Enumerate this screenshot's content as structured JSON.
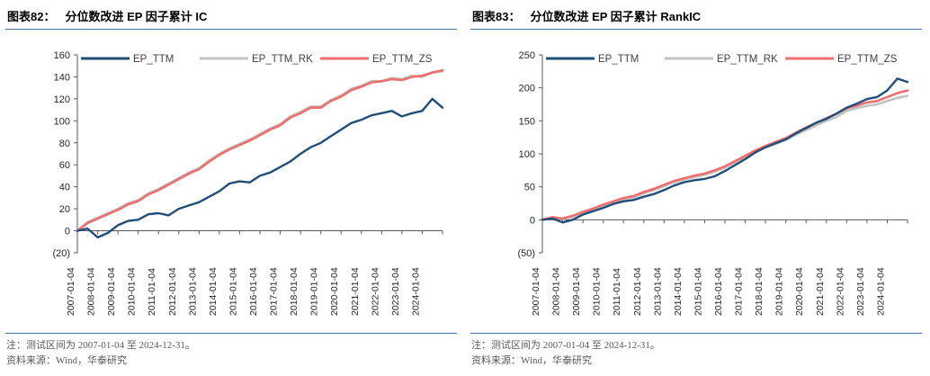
{
  "style": {
    "rule_color": "#41719c",
    "axis_color": "#595959",
    "tick_label_color": "#262626",
    "legend_text_color": "#404040",
    "note_text_color": "#595959"
  },
  "chart_data": [
    {
      "type": "line",
      "fig_label": "图表82：",
      "title": "分位数改进 EP 因子累计 IC",
      "legend_position": "top",
      "grid": false,
      "ylim": [
        -20,
        160
      ],
      "y_ticks": [
        160,
        140,
        120,
        100,
        80,
        60,
        40,
        20,
        0,
        -20
      ],
      "y_tick_labels": [
        "160",
        "140",
        "120",
        "100",
        "80",
        "60",
        "40",
        "20",
        "0",
        "(20)"
      ],
      "x_tick_labels": [
        "2007-01-04",
        "2008-01-04",
        "2009-01-04",
        "2010-01-04",
        "2011-01-04",
        "2012-01-04",
        "2013-01-04",
        "2014-01-04",
        "2015-01-04",
        "2016-01-04",
        "2017-01-04",
        "2018-01-04",
        "2019-01-04",
        "2020-01-04",
        "2021-01-04",
        "2022-01-04",
        "2023-01-04",
        "2024-01-04"
      ],
      "x": [
        2007,
        2007.5,
        2008,
        2008.5,
        2009,
        2009.5,
        2010,
        2010.5,
        2011,
        2011.5,
        2012,
        2012.5,
        2013,
        2013.5,
        2014,
        2014.5,
        2015,
        2015.5,
        2016,
        2016.5,
        2017,
        2017.5,
        2018,
        2018.5,
        2019,
        2019.5,
        2020,
        2020.5,
        2021,
        2021.5,
        2022,
        2022.5,
        2023,
        2023.5,
        2024,
        2024.5,
        2025
      ],
      "series": [
        {
          "name": "EP_TTM",
          "color": "#1f4e79",
          "width": 2.4,
          "values": [
            0,
            2,
            -6,
            -2,
            5,
            9,
            10,
            15,
            16,
            14,
            20,
            23,
            26,
            31,
            36,
            43,
            45,
            44,
            50,
            53,
            58,
            63,
            70,
            76,
            80,
            86,
            92,
            98,
            101,
            105,
            107,
            109,
            104,
            107,
            109,
            120,
            112
          ]
        },
        {
          "name": "EP_TTM_RK",
          "color": "#c2c2c2",
          "width": 2.6,
          "values": [
            0,
            8,
            12,
            16,
            20,
            25,
            28,
            34,
            38,
            43,
            48,
            53,
            57,
            64,
            70,
            75,
            79,
            83,
            88,
            93,
            97,
            104,
            108,
            113,
            113,
            119,
            123,
            129,
            132,
            136,
            136,
            139,
            138,
            141,
            140,
            144,
            145
          ]
        },
        {
          "name": "EP_TTM_ZS",
          "color": "#ee6e6e",
          "width": 2.6,
          "values": [
            0,
            7,
            11,
            15,
            19,
            24,
            27,
            33,
            37,
            42,
            47,
            52,
            56,
            63,
            69,
            74,
            78,
            82,
            87,
            92,
            96,
            103,
            107,
            112,
            112,
            118,
            122,
            128,
            131,
            135,
            136,
            138,
            137,
            140,
            141,
            144,
            146
          ]
        }
      ],
      "draw_order": [
        1,
        2,
        0
      ],
      "notes": [
        "注：测试区间为 2007-01-04 至 2024-12-31。",
        "资料来源：Wind，华泰研究"
      ]
    },
    {
      "type": "line",
      "fig_label": "图表83：",
      "title": "分位数改进 EP 因子累计 RankIC",
      "legend_position": "top",
      "grid": false,
      "ylim": [
        -50,
        250
      ],
      "y_ticks": [
        250,
        200,
        150,
        100,
        50,
        0,
        -50
      ],
      "y_tick_labels": [
        "250",
        "200",
        "150",
        "100",
        "50",
        "0",
        "(50)"
      ],
      "x_tick_labels": [
        "2007-01-04",
        "2008-01-04",
        "2009-01-04",
        "2010-01-04",
        "2011-01-04",
        "2012-01-04",
        "2013-01-04",
        "2014-01-04",
        "2015-01-04",
        "2016-01-04",
        "2017-01-04",
        "2018-01-04",
        "2019-01-04",
        "2020-01-04",
        "2021-01-04",
        "2022-01-04",
        "2023-01-04",
        "2024-01-04"
      ],
      "x": [
        2007,
        2007.5,
        2008,
        2008.5,
        2009,
        2009.5,
        2010,
        2010.5,
        2011,
        2011.5,
        2012,
        2012.5,
        2013,
        2013.5,
        2014,
        2014.5,
        2015,
        2015.5,
        2016,
        2016.5,
        2017,
        2017.5,
        2018,
        2018.5,
        2019,
        2019.5,
        2020,
        2020.5,
        2021,
        2021.5,
        2022,
        2022.5,
        2023,
        2023.5,
        2024,
        2024.5,
        2025
      ],
      "series": [
        {
          "name": "EP_TTM",
          "color": "#1f4e79",
          "width": 2.4,
          "values": [
            0,
            2,
            -4,
            0,
            8,
            13,
            18,
            24,
            28,
            30,
            35,
            39,
            45,
            52,
            57,
            60,
            62,
            66,
            74,
            83,
            92,
            102,
            110,
            116,
            122,
            131,
            139,
            147,
            153,
            161,
            170,
            176,
            183,
            186,
            196,
            214,
            209
          ]
        },
        {
          "name": "EP_TTM_RK",
          "color": "#c2c2c2",
          "width": 2.6,
          "values": [
            0,
            3,
            1,
            5,
            11,
            16,
            21,
            26,
            31,
            34,
            40,
            45,
            51,
            57,
            61,
            65,
            68,
            73,
            79,
            87,
            95,
            103,
            110,
            115,
            121,
            129,
            136,
            143,
            150,
            156,
            165,
            169,
            173,
            175,
            180,
            185,
            188
          ]
        },
        {
          "name": "EP_TTM_ZS",
          "color": "#ee6e6e",
          "width": 2.6,
          "values": [
            0,
            4,
            2,
            6,
            12,
            17,
            23,
            28,
            33,
            36,
            42,
            47,
            53,
            59,
            63,
            67,
            70,
            75,
            81,
            89,
            97,
            105,
            112,
            118,
            124,
            132,
            140,
            147,
            154,
            161,
            169,
            173,
            178,
            180,
            186,
            192,
            196
          ]
        }
      ],
      "draw_order": [
        1,
        2,
        0
      ],
      "notes": [
        "注：测试区间为 2007-01-04 至 2024-12-31。",
        "资料来源：Wind，华泰研究"
      ]
    }
  ]
}
